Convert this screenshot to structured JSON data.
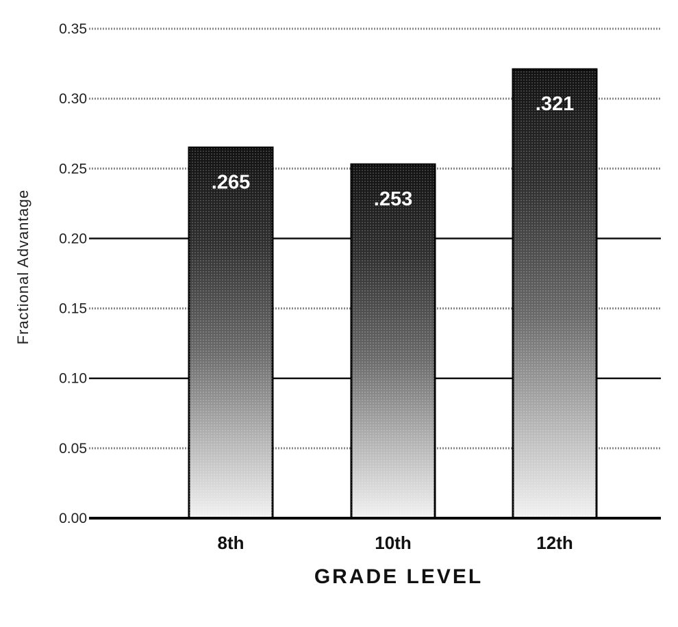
{
  "chart_data": {
    "type": "bar",
    "categories": [
      "8th",
      "10th",
      "12th"
    ],
    "values": [
      0.265,
      0.253,
      0.321
    ],
    "data_labels": [
      ".265",
      ".253",
      ".321"
    ],
    "xlabel": "GRADE LEVEL",
    "ylabel": "Fractional Advantage",
    "ylim": [
      0,
      0.35
    ],
    "yticks": [
      "0.00",
      "0.05",
      "0.10",
      "0.15",
      "0.20",
      "0.25",
      "0.30",
      "0.35"
    ],
    "grid": true,
    "legend": "none"
  },
  "colors": {
    "bar_top": "#1a1a1a",
    "bar_bottom": "#efefef",
    "grid_dotted": "#888888",
    "grid_solid": "#111111",
    "axis": "#000000"
  }
}
